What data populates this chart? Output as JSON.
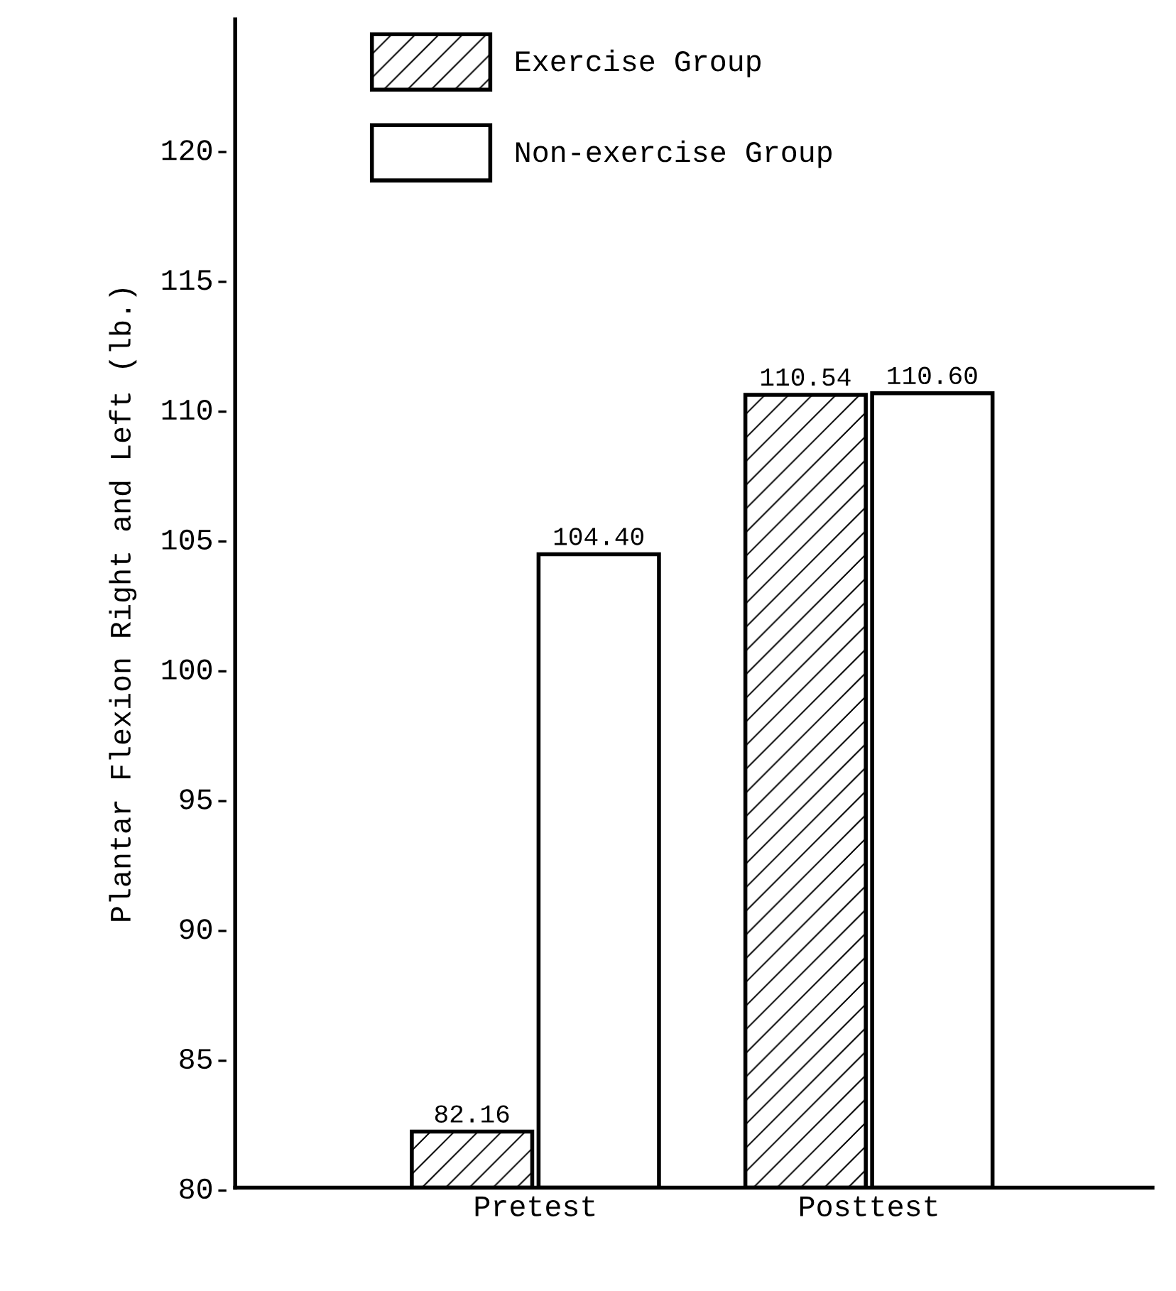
{
  "chart_data": {
    "type": "bar",
    "ylabel": "Plantar Flexion Right and Left (lb.)",
    "categories": [
      "Pretest",
      "Posttest"
    ],
    "series": [
      {
        "name": "Exercise Group",
        "color": "#ffffff",
        "values": [
          82.16,
          110.54
        ],
        "value_labels": [
          "82.16",
          "110.54"
        ]
      },
      {
        "name": "Non-exercise Group",
        "color": "#ffffff",
        "values": [
          104.4,
          110.6
        ],
        "value_labels": [
          "104.40",
          "110.60"
        ]
      }
    ],
    "ylim": [
      80,
      125
    ],
    "yticks": [
      {
        "value": 80,
        "label": "80-"
      },
      {
        "value": 85,
        "label": "85-"
      },
      {
        "value": 90,
        "label": "90-"
      },
      {
        "value": 95,
        "label": "95-"
      },
      {
        "value": 100,
        "label": "100-"
      },
      {
        "value": 105,
        "label": "105-"
      },
      {
        "value": 110,
        "label": "110-"
      },
      {
        "value": 115,
        "label": "115-"
      },
      {
        "value": 120,
        "label": "120-"
      }
    ],
    "legend": "top left",
    "grid": false
  }
}
